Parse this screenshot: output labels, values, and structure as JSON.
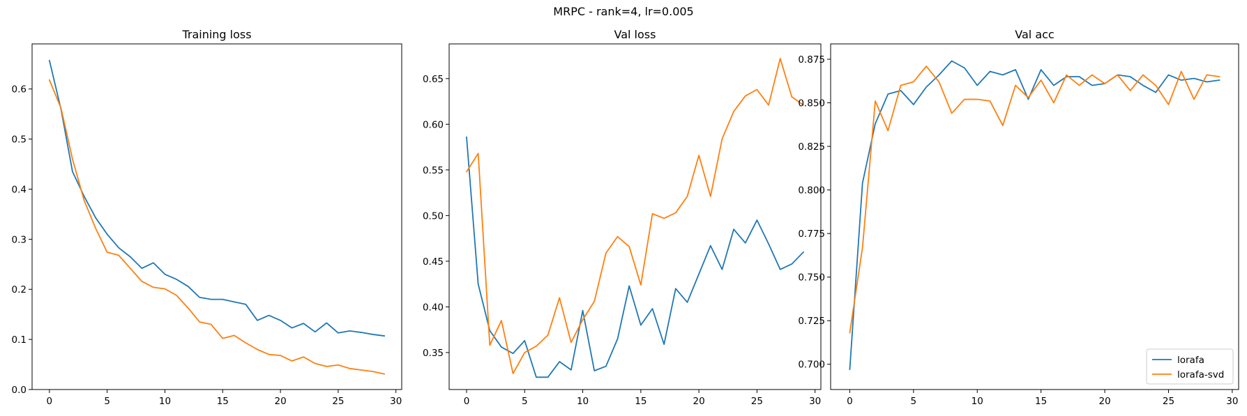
{
  "figure": {
    "title": "MRPC - rank=4, lr=0.005"
  },
  "colors": {
    "lorafa": "#1f77b4",
    "lorafa-svd": "#ff7f0e"
  },
  "chart_data": [
    {
      "type": "line",
      "title": "Training loss",
      "xlabel": "",
      "ylabel": "",
      "xlim": [
        -1.5,
        30.5
      ],
      "ylim": [
        0.0,
        0.69
      ],
      "xticks": [
        0,
        5,
        10,
        15,
        20,
        25,
        30
      ],
      "yticks": [
        0.0,
        0.1,
        0.2,
        0.3,
        0.4,
        0.5,
        0.6
      ],
      "ytick_labels": [
        "0.0",
        "0.1",
        "0.2",
        "0.3",
        "0.4",
        "0.5",
        "0.6"
      ],
      "grid": false,
      "legend": null,
      "x": [
        0,
        1,
        2,
        3,
        4,
        5,
        6,
        7,
        8,
        9,
        10,
        11,
        12,
        13,
        14,
        15,
        16,
        17,
        18,
        19,
        20,
        21,
        22,
        23,
        24,
        25,
        26,
        27,
        28,
        29
      ],
      "series": [
        {
          "name": "lorafa",
          "color": "#1f77b4",
          "values": [
            0.657,
            0.56,
            0.435,
            0.386,
            0.343,
            0.31,
            0.283,
            0.265,
            0.242,
            0.253,
            0.23,
            0.22,
            0.206,
            0.184,
            0.18,
            0.18,
            0.175,
            0.17,
            0.138,
            0.148,
            0.138,
            0.123,
            0.132,
            0.115,
            0.133,
            0.113,
            0.117,
            0.114,
            0.11,
            0.107
          ]
        },
        {
          "name": "lorafa-svd",
          "color": "#ff7f0e",
          "values": [
            0.618,
            0.562,
            0.46,
            0.378,
            0.322,
            0.274,
            0.268,
            0.242,
            0.216,
            0.204,
            0.201,
            0.188,
            0.163,
            0.135,
            0.13,
            0.102,
            0.108,
            0.093,
            0.08,
            0.07,
            0.068,
            0.057,
            0.065,
            0.052,
            0.046,
            0.049,
            0.042,
            0.039,
            0.036,
            0.031
          ]
        }
      ]
    },
    {
      "type": "line",
      "title": "Val loss",
      "xlabel": "",
      "ylabel": "",
      "xlim": [
        -1.5,
        30.5
      ],
      "ylim": [
        0.3095,
        0.688
      ],
      "xticks": [
        0,
        5,
        10,
        15,
        20,
        25,
        30
      ],
      "yticks": [
        0.35,
        0.4,
        0.45,
        0.5,
        0.55,
        0.6,
        0.65
      ],
      "ytick_labels": [
        "0.35",
        "0.40",
        "0.45",
        "0.50",
        "0.55",
        "0.60",
        "0.65"
      ],
      "grid": false,
      "legend": null,
      "x": [
        0,
        1,
        2,
        3,
        4,
        5,
        6,
        7,
        8,
        9,
        10,
        11,
        12,
        13,
        14,
        15,
        16,
        17,
        18,
        19,
        20,
        21,
        22,
        23,
        24,
        25,
        26,
        27,
        28,
        29
      ],
      "series": [
        {
          "name": "lorafa",
          "color": "#1f77b4",
          "values": [
            0.586,
            0.425,
            0.374,
            0.356,
            0.349,
            0.363,
            0.323,
            0.323,
            0.34,
            0.331,
            0.396,
            0.33,
            0.335,
            0.365,
            0.423,
            0.38,
            0.398,
            0.359,
            0.42,
            0.405,
            0.436,
            0.467,
            0.441,
            0.485,
            0.47,
            0.495,
            0.469,
            0.441,
            0.447,
            0.46
          ]
        },
        {
          "name": "lorafa-svd",
          "color": "#ff7f0e",
          "values": [
            0.548,
            0.568,
            0.358,
            0.385,
            0.327,
            0.35,
            0.357,
            0.369,
            0.41,
            0.361,
            0.386,
            0.406,
            0.459,
            0.477,
            0.466,
            0.424,
            0.502,
            0.497,
            0.503,
            0.521,
            0.566,
            0.521,
            0.584,
            0.614,
            0.631,
            0.638,
            0.621,
            0.672,
            0.63,
            0.621
          ]
        }
      ]
    },
    {
      "type": "line",
      "title": "Val acc",
      "xlabel": "",
      "ylabel": "",
      "xlim": [
        -1.5,
        30.5
      ],
      "ylim": [
        0.6855,
        0.8838
      ],
      "xticks": [
        0,
        5,
        10,
        15,
        20,
        25,
        30
      ],
      "yticks": [
        0.7,
        0.725,
        0.75,
        0.775,
        0.8,
        0.825,
        0.85,
        0.875
      ],
      "ytick_labels": [
        "0.700",
        "0.725",
        "0.750",
        "0.775",
        "0.800",
        "0.825",
        "0.850",
        "0.875"
      ],
      "grid": false,
      "legend": "lower right",
      "x": [
        0,
        1,
        2,
        3,
        4,
        5,
        6,
        7,
        8,
        9,
        10,
        11,
        12,
        13,
        14,
        15,
        16,
        17,
        18,
        19,
        20,
        21,
        22,
        23,
        24,
        25,
        26,
        27,
        28,
        29
      ],
      "series": [
        {
          "name": "lorafa",
          "color": "#1f77b4",
          "values": [
            0.697,
            0.804,
            0.838,
            0.855,
            0.857,
            0.849,
            0.859,
            0.866,
            0.874,
            0.87,
            0.86,
            0.868,
            0.866,
            0.869,
            0.852,
            0.869,
            0.86,
            0.865,
            0.865,
            0.86,
            0.861,
            0.866,
            0.865,
            0.86,
            0.856,
            0.866,
            0.863,
            0.864,
            0.862,
            0.863
          ]
        },
        {
          "name": "lorafa-svd",
          "color": "#ff7f0e",
          "values": [
            0.718,
            0.767,
            0.851,
            0.834,
            0.86,
            0.862,
            0.871,
            0.862,
            0.844,
            0.852,
            0.852,
            0.851,
            0.837,
            0.86,
            0.853,
            0.863,
            0.85,
            0.866,
            0.86,
            0.866,
            0.861,
            0.866,
            0.857,
            0.866,
            0.86,
            0.849,
            0.868,
            0.852,
            0.866,
            0.865
          ]
        }
      ]
    }
  ]
}
